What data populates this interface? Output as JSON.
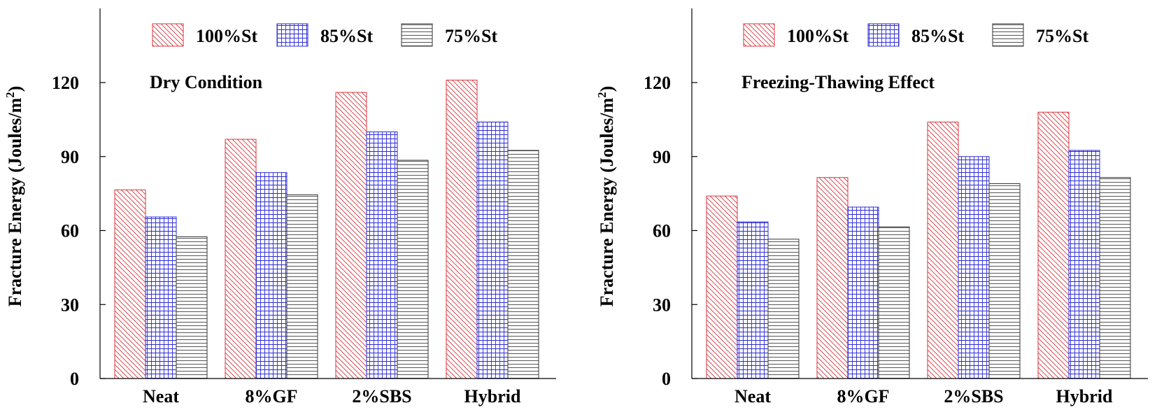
{
  "chart_data": [
    {
      "type": "bar",
      "annotation": "Dry Condition",
      "ylabel": "Fracture Energy (Joules/m",
      "ylabel_sup": "2",
      "ylabel_close": ")",
      "ylim": [
        0,
        150
      ],
      "yticks": [
        0,
        30,
        60,
        90,
        120
      ],
      "categories": [
        "Neat",
        "8%GF",
        "2%SBS",
        "Hybrid"
      ],
      "legend_position": "top",
      "series": [
        {
          "name": "100%St",
          "values": [
            76.5,
            97,
            116,
            121
          ]
        },
        {
          "name": "85%St",
          "values": [
            65.5,
            83.5,
            100,
            104
          ]
        },
        {
          "name": "75%St",
          "values": [
            57.5,
            74.5,
            88.5,
            92.5
          ]
        }
      ]
    },
    {
      "type": "bar",
      "annotation": "Freezing-Thawing Effect",
      "ylabel": "Fracture Energy (Joules/m",
      "ylabel_sup": "2",
      "ylabel_close": ")",
      "ylim": [
        0,
        150
      ],
      "yticks": [
        0,
        30,
        60,
        90,
        120
      ],
      "categories": [
        "Neat",
        "8%GF",
        "2%SBS",
        "Hybrid"
      ],
      "legend_position": "top",
      "series": [
        {
          "name": "100%St",
          "values": [
            74,
            81.5,
            104,
            108
          ]
        },
        {
          "name": "85%St",
          "values": [
            63.5,
            69.5,
            90,
            92.5
          ]
        },
        {
          "name": "75%St",
          "values": [
            56.5,
            61.5,
            79,
            81.5
          ]
        }
      ]
    }
  ],
  "colors": {
    "series_100": "#d9363e",
    "series_85": "#2b2bd6",
    "series_75": "#333333",
    "axis": "#000000"
  }
}
